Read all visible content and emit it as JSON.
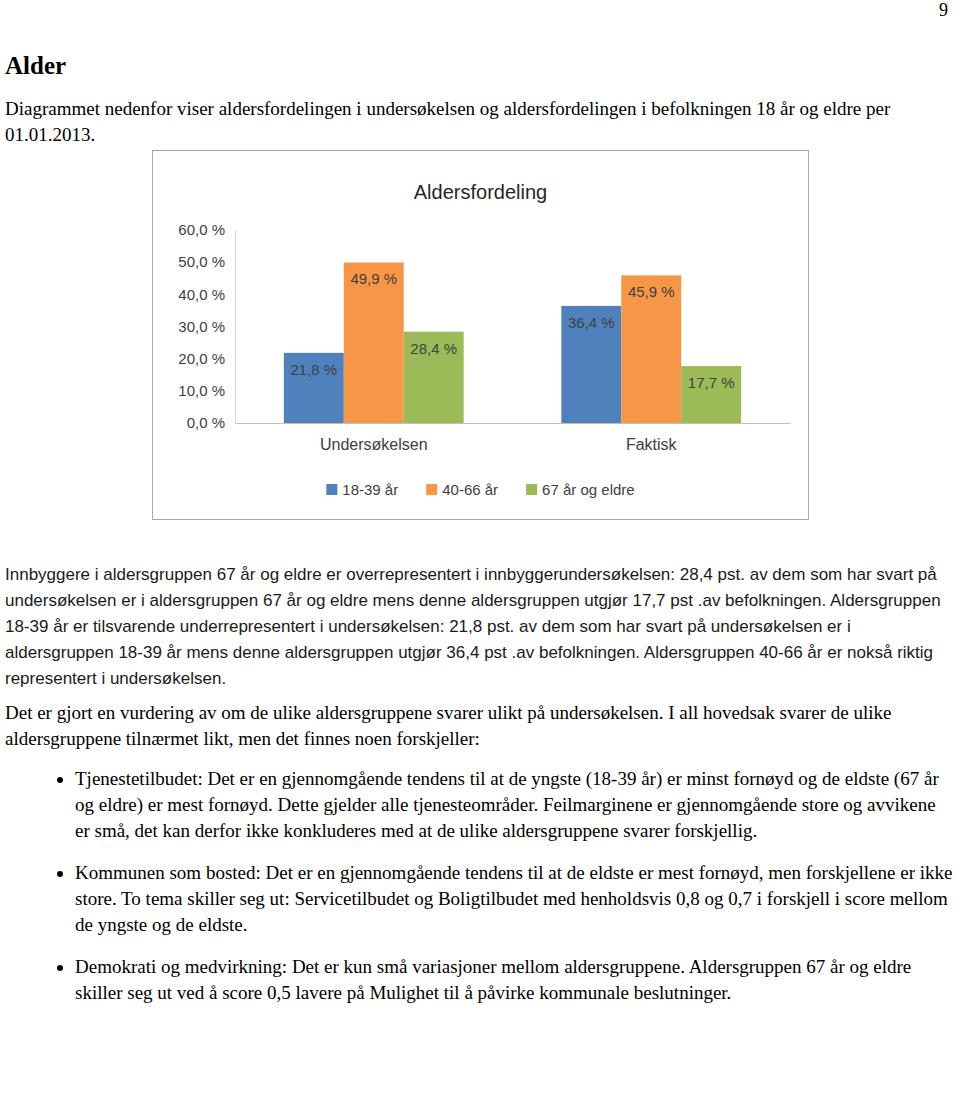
{
  "page_number": "9",
  "heading": "Alder",
  "intro": "Diagrammet nedenfor viser aldersfordelingen i undersøkelsen og aldersfordelingen i befolkningen 18 år og eldre per 01.01.2013.",
  "chart_data": {
    "type": "bar",
    "title": "Aldersfordeling",
    "categories": [
      "Undersøkelsen",
      "Faktisk"
    ],
    "series": [
      {
        "name": "18-39 år",
        "color": "#4f81bd",
        "values": [
          21.8,
          36.4
        ],
        "value_labels": [
          "21,8 %",
          "36,4 %"
        ]
      },
      {
        "name": "40-66 år",
        "color": "#f79646",
        "values": [
          49.9,
          45.9
        ],
        "value_labels": [
          "49,9 %",
          "45,9 %"
        ]
      },
      {
        "name": "67 år og eldre",
        "color": "#9bbb59",
        "values": [
          28.4,
          17.7
        ],
        "value_labels": [
          "28,4 %",
          "17,7 %"
        ]
      }
    ],
    "ylim": [
      0,
      60
    ],
    "yticks": [
      {
        "value": 0,
        "label": "0,0 %"
      },
      {
        "value": 10,
        "label": "10,0 %"
      },
      {
        "value": 20,
        "label": "20,0 %"
      },
      {
        "value": 30,
        "label": "30,0 %"
      },
      {
        "value": 40,
        "label": "40,0 %"
      },
      {
        "value": 50,
        "label": "50,0 %"
      },
      {
        "value": 60,
        "label": "60,0 %"
      }
    ],
    "grid": false,
    "legend": "bottom",
    "data_labels": true
  },
  "paragraphs": [
    "Innbyggere i aldersgruppen 67 år og eldre er overrepresentert i innbyggerundersøkelsen: 28,4 pst. av dem som har svart på undersøkelsen er i aldersgruppen 67 år og eldre mens denne aldersgruppen utgjør 17,7 pst .av befolkningen. Aldersgruppen 18-39 år er tilsvarende underrepresentert i undersøkelsen: 21,8 pst. av dem som har svart på undersøkelsen er i aldersgruppen 18-39 år mens denne aldersgruppen utgjør 36,4 pst .av befolkningen. Aldersgruppen 40-66 år er nokså riktig representert i undersøkelsen.",
    "Det er gjort en vurdering av om de ulike aldersgruppene svarer ulikt på undersøkelsen. I all hovedsak svarer de ulike aldersgruppene tilnærmet likt, men det finnes noen forskjeller:"
  ],
  "bullets": [
    "Tjenestetilbudet: Det er en gjennomgående tendens til at de yngste (18-39 år) er minst fornøyd og de eldste (67 år og eldre) er mest fornøyd. Dette gjelder alle tjenesteområder. Feilmarginene er gjennomgående store og avvikene er små, det kan derfor ikke konkluderes med at de ulike aldersgruppene svarer forskjellig.",
    "Kommunen som bosted: Det er en gjennomgående tendens til at de eldste er mest fornøyd, men forskjellene er ikke store. To tema skiller seg ut: Servicetilbudet og Boligtilbudet med henholdsvis 0,8 og 0,7 i forskjell i score mellom de yngste og de eldste.",
    "Demokrati og medvirkning: Det er kun små variasjoner mellom aldersgruppene. Aldersgruppen 67 år og eldre skiller seg ut ved å score 0,5 lavere på Mulighet til å påvirke kommunale beslutninger."
  ]
}
